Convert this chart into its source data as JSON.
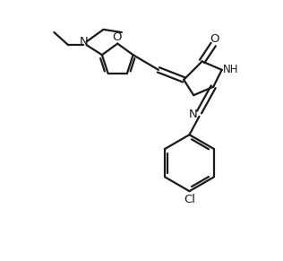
{
  "bg_color": "#ffffff",
  "line_color": "#1a1a1a",
  "line_width": 1.6,
  "font_size": 8.5,
  "figsize": [
    3.16,
    2.91
  ],
  "dpi": 100,
  "xlim": [
    0,
    10
  ],
  "ylim": [
    0,
    9.2
  ]
}
